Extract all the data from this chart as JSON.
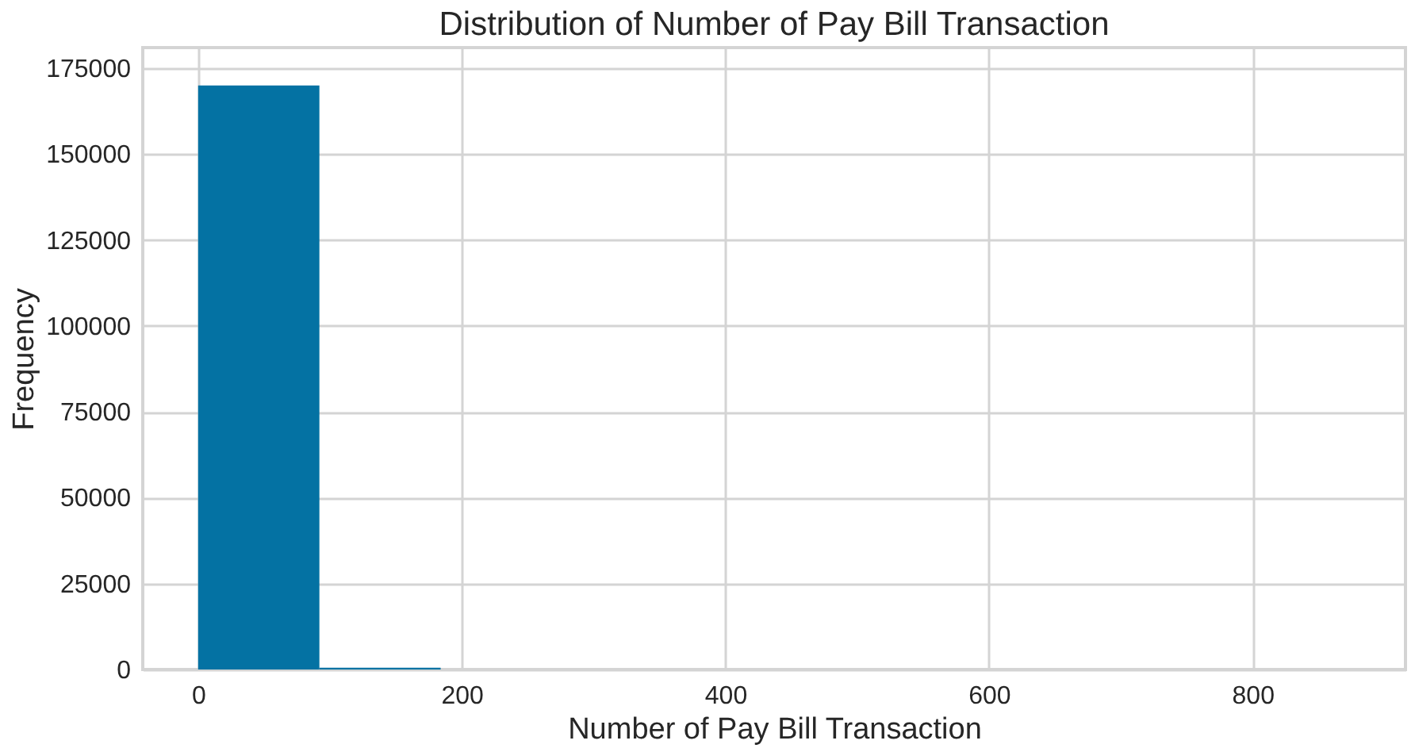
{
  "chart_data": {
    "type": "histogram",
    "title": "Distribution of Number of Pay Bill Transaction",
    "xlabel": "Number of Pay Bill Transaction",
    "ylabel": "Frequency",
    "bins": [
      0,
      92,
      184,
      276,
      368,
      460,
      552,
      644,
      736,
      828,
      920
    ],
    "values": [
      170000,
      500,
      0,
      0,
      0,
      0,
      0,
      0,
      0,
      0
    ],
    "color": "#0472a3",
    "xlim": [
      -42,
      916
    ],
    "xticks": [
      0,
      200,
      400,
      600,
      800
    ],
    "ylim": [
      0,
      181000
    ],
    "yticks": [
      0,
      25000,
      50000,
      75000,
      100000,
      125000,
      150000,
      175000
    ],
    "grid": true,
    "legend": false
  }
}
